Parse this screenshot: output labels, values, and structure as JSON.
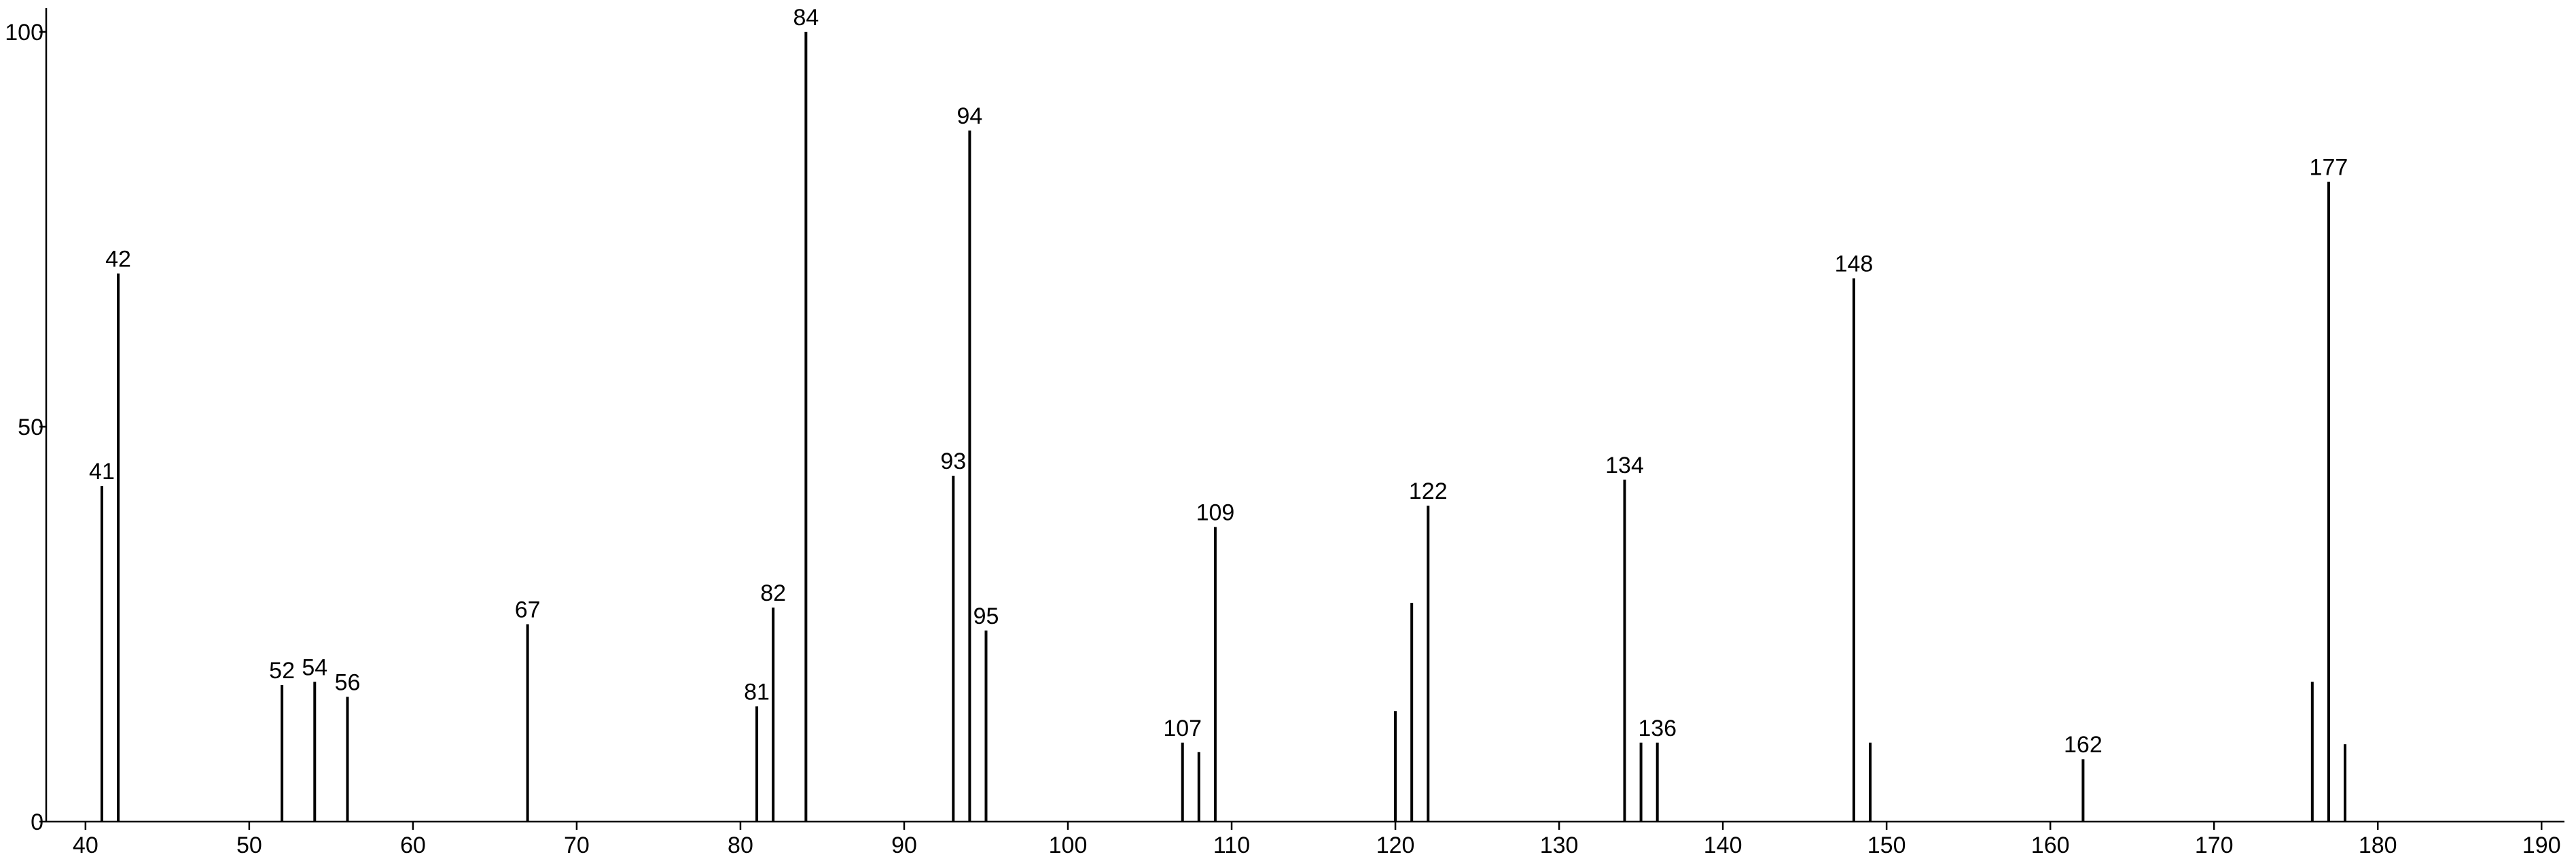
{
  "chart_data": {
    "type": "stem",
    "x": [
      41,
      42,
      52,
      54,
      56,
      67,
      81,
      82,
      84,
      93,
      94,
      95,
      107,
      108,
      109,
      120,
      121,
      122,
      134,
      135,
      136,
      148,
      149,
      162,
      176,
      177,
      178
    ],
    "values": [
      42.5,
      69.4,
      17.3,
      17.7,
      15.8,
      25,
      14.6,
      27.1,
      100,
      43.8,
      87.5,
      24.2,
      10,
      8.8,
      37.3,
      14,
      27.7,
      40,
      43.3,
      10,
      10,
      68.8,
      10,
      7.9,
      17.7,
      81,
      9.8
    ],
    "labels": [
      "41",
      "42",
      "52",
      "54",
      "56",
      "67",
      "81",
      "82",
      "84",
      "93",
      "94",
      "95",
      "107",
      null,
      "109",
      null,
      null,
      "122",
      "134",
      null,
      "136",
      "148",
      null,
      "162",
      null,
      "177",
      null
    ],
    "color": "#000000",
    "xlim": [
      37.6,
      191.4
    ],
    "xticks": [
      40,
      50,
      60,
      70,
      80,
      90,
      100,
      110,
      120,
      130,
      140,
      150,
      160,
      170,
      180,
      190
    ],
    "ylim": [
      0,
      103
    ],
    "yticks": [
      0,
      50,
      100
    ]
  }
}
